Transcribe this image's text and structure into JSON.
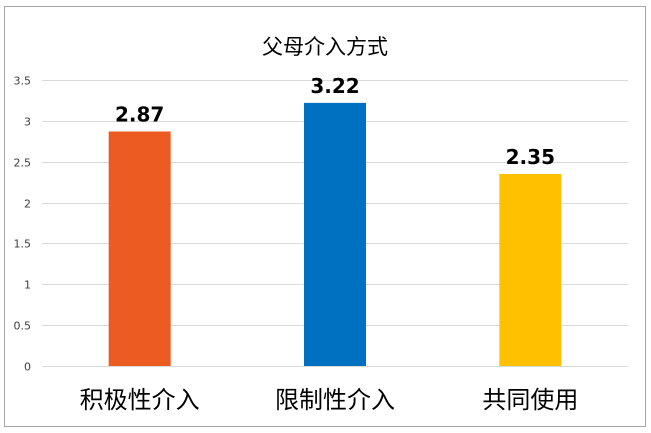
{
  "chart_data": {
    "type": "bar",
    "title": "父母介入方式",
    "categories": [
      "积极性介入",
      "限制性介入",
      "共同使用"
    ],
    "values": [
      2.87,
      3.22,
      2.35
    ],
    "data_labels": [
      "2.87",
      "3.22",
      "2.35"
    ],
    "ylim": [
      0,
      3.5
    ],
    "y_ticks": [
      0,
      0.5,
      1,
      1.5,
      2,
      2.5,
      3,
      3.5
    ],
    "y_tick_labels": [
      "0",
      "0.5",
      "1",
      "1.5",
      "2",
      "2.5",
      "3",
      "3.5"
    ],
    "xlabel": "",
    "ylabel": "",
    "grid": true,
    "legend": "none",
    "bar_colors": [
      "#EB5B22",
      "#0070C0",
      "#FFC000"
    ],
    "border_color": "#A6A6A6",
    "grid_color": "#D9D9D9"
  }
}
